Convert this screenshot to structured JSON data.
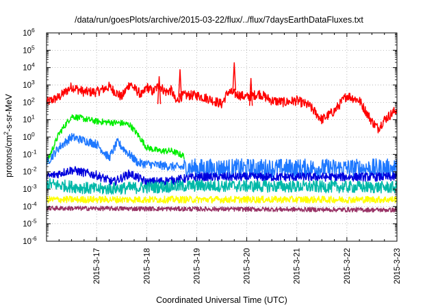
{
  "chart_data": {
    "type": "line",
    "title": "/data/run/goesPlots/archive/2015-03-22/flux/../flux/7daysEarthDataFluxes.txt",
    "xlabel": "Coordinated Universal Time (UTC)",
    "ylabel_parts": {
      "pre": "protons/cm",
      "sup": "2",
      "post": "-s-sr-MeV"
    },
    "yscale": "log",
    "ylim_exp": [
      -6,
      6
    ],
    "y_ticks": [
      {
        "base": "10",
        "exp": "-6"
      },
      {
        "base": "10",
        "exp": "-5"
      },
      {
        "base": "10",
        "exp": "-4"
      },
      {
        "base": "10",
        "exp": "-3"
      },
      {
        "base": "10",
        "exp": "-2"
      },
      {
        "base": "10",
        "exp": "-1"
      },
      {
        "base": "10",
        "exp": "0"
      },
      {
        "base": "10",
        "exp": "1"
      },
      {
        "base": "10",
        "exp": "2"
      },
      {
        "base": "10",
        "exp": "3"
      },
      {
        "base": "10",
        "exp": "4"
      },
      {
        "base": "10",
        "exp": "5"
      },
      {
        "base": "10",
        "exp": "6"
      }
    ],
    "x_range": [
      "2015-03-16",
      "2015-03-23"
    ],
    "x_ticks": [
      "2015-3-17",
      "2015-3-18",
      "2015-3-19",
      "2015-3-20",
      "2015-3-21",
      "2015-3-22",
      "2015-3-23"
    ],
    "grid": true,
    "series": [
      {
        "color": "#ff0000",
        "noise": 0.28,
        "points": [
          [
            "2015-03-16 00:00",
            2.0
          ],
          [
            "2015-03-16 06:00",
            2.3
          ],
          [
            "2015-03-16 12:00",
            2.9
          ],
          [
            "2015-03-16 18:00",
            2.6
          ],
          [
            "2015-03-17 00:00",
            2.6
          ],
          [
            "2015-03-17 06:00",
            2.9
          ],
          [
            "2015-03-17 12:00",
            2.3
          ],
          [
            "2015-03-17 16:00",
            3.1
          ],
          [
            "2015-03-17 18:00",
            2.8
          ],
          [
            "2015-03-17 22:00",
            2.4
          ],
          [
            "2015-03-18 00:00",
            2.9
          ],
          [
            "2015-03-18 03:00",
            2.6
          ],
          [
            "2015-03-18 06:00",
            3.0
          ],
          [
            "2015-03-18 09:00",
            2.6
          ],
          [
            "2015-03-18 12:00",
            2.7
          ],
          [
            "2015-03-18 14:00",
            2.0
          ],
          [
            "2015-03-18 16:00",
            2.3
          ],
          [
            "2015-03-18 18:00",
            2.4
          ],
          [
            "2015-03-19 00:00",
            2.4
          ],
          [
            "2015-03-19 06:00",
            2.2
          ],
          [
            "2015-03-19 12:00",
            1.9
          ],
          [
            "2015-03-19 15:00",
            2.6
          ],
          [
            "2015-03-19 18:00",
            2.5
          ],
          [
            "2015-03-20 00:00",
            2.3
          ],
          [
            "2015-03-20 06:00",
            2.5
          ],
          [
            "2015-03-20 12:00",
            2.1
          ],
          [
            "2015-03-20 18:00",
            2.0
          ],
          [
            "2015-03-21 00:00",
            2.1
          ],
          [
            "2015-03-21 06:00",
            1.8
          ],
          [
            "2015-03-21 12:00",
            1.0
          ],
          [
            "2015-03-21 18:00",
            1.5
          ],
          [
            "2015-03-22 00:00",
            2.4
          ],
          [
            "2015-03-22 06:00",
            2.1
          ],
          [
            "2015-03-22 12:00",
            0.9
          ],
          [
            "2015-03-22 15:00",
            0.5
          ],
          [
            "2015-03-22 18:00",
            1.0
          ],
          [
            "2015-03-23 00:00",
            1.6
          ]
        ],
        "spikes": [
          [
            "2015-03-18 16:00",
            3.9
          ],
          [
            "2015-03-19 18:00",
            4.3
          ],
          [
            "2015-03-20 02:00",
            3.4
          ],
          [
            "2015-03-18 06:00",
            3.5
          ]
        ]
      },
      {
        "color": "#00ee00",
        "noise": 0.18,
        "points": [
          [
            "2015-03-16 00:00",
            -1.5
          ],
          [
            "2015-03-16 06:00",
            0.2
          ],
          [
            "2015-03-16 12:00",
            1.2
          ],
          [
            "2015-03-17 00:00",
            0.9
          ],
          [
            "2015-03-17 12:00",
            0.8
          ],
          [
            "2015-03-17 16:00",
            0.7
          ],
          [
            "2015-03-17 20:00",
            0.1
          ],
          [
            "2015-03-18 00:00",
            -0.6
          ],
          [
            "2015-03-18 06:00",
            -0.8
          ],
          [
            "2015-03-18 12:00",
            -0.8
          ],
          [
            "2015-03-18 18:00",
            -1.1
          ]
        ]
      },
      {
        "color": "#1e78ff",
        "noise": 0.25,
        "points": [
          [
            "2015-03-16 00:00",
            -1.5
          ],
          [
            "2015-03-16 06:00",
            -0.6
          ],
          [
            "2015-03-16 12:00",
            0.0
          ],
          [
            "2015-03-17 00:00",
            -0.4
          ],
          [
            "2015-03-17 06:00",
            -1.2
          ],
          [
            "2015-03-17 10:00",
            -0.3
          ],
          [
            "2015-03-17 14:00",
            -0.8
          ],
          [
            "2015-03-17 20:00",
            -1.5
          ],
          [
            "2015-03-18 12:00",
            -1.7
          ],
          [
            "2015-03-19 00:00",
            -1.8
          ],
          [
            "2015-03-23 00:00",
            -1.8
          ]
        ],
        "spiky_after": "2015-03-18 18:00"
      },
      {
        "color": "#0000dd",
        "noise": 0.25,
        "points": [
          [
            "2015-03-16 00:00",
            -2.3
          ],
          [
            "2015-03-16 12:00",
            -1.9
          ],
          [
            "2015-03-17 00:00",
            -2.2
          ],
          [
            "2015-03-17 08:00",
            -2.6
          ],
          [
            "2015-03-17 16:00",
            -2.1
          ],
          [
            "2015-03-18 00:00",
            -2.6
          ],
          [
            "2015-03-18 12:00",
            -2.5
          ],
          [
            "2015-03-19 00:00",
            -2.3
          ],
          [
            "2015-03-23 00:00",
            -2.3
          ]
        ]
      },
      {
        "color": "#00b8a8",
        "noise": 0.35,
        "points": [
          [
            "2015-03-16 00:00",
            -2.7
          ],
          [
            "2015-03-17 00:00",
            -3.0
          ],
          [
            "2015-03-18 00:00",
            -2.9
          ],
          [
            "2015-03-19 00:00",
            -2.8
          ],
          [
            "2015-03-23 00:00",
            -2.9
          ]
        ]
      },
      {
        "color": "#ffff00",
        "noise": 0.2,
        "points": [
          [
            "2015-03-16 00:00",
            -3.6
          ],
          [
            "2015-03-23 00:00",
            -3.6
          ]
        ]
      },
      {
        "color": "#993366",
        "noise": 0.13,
        "points": [
          [
            "2015-03-16 00:00",
            -4.1
          ],
          [
            "2015-03-23 00:00",
            -4.2
          ]
        ]
      }
    ]
  }
}
